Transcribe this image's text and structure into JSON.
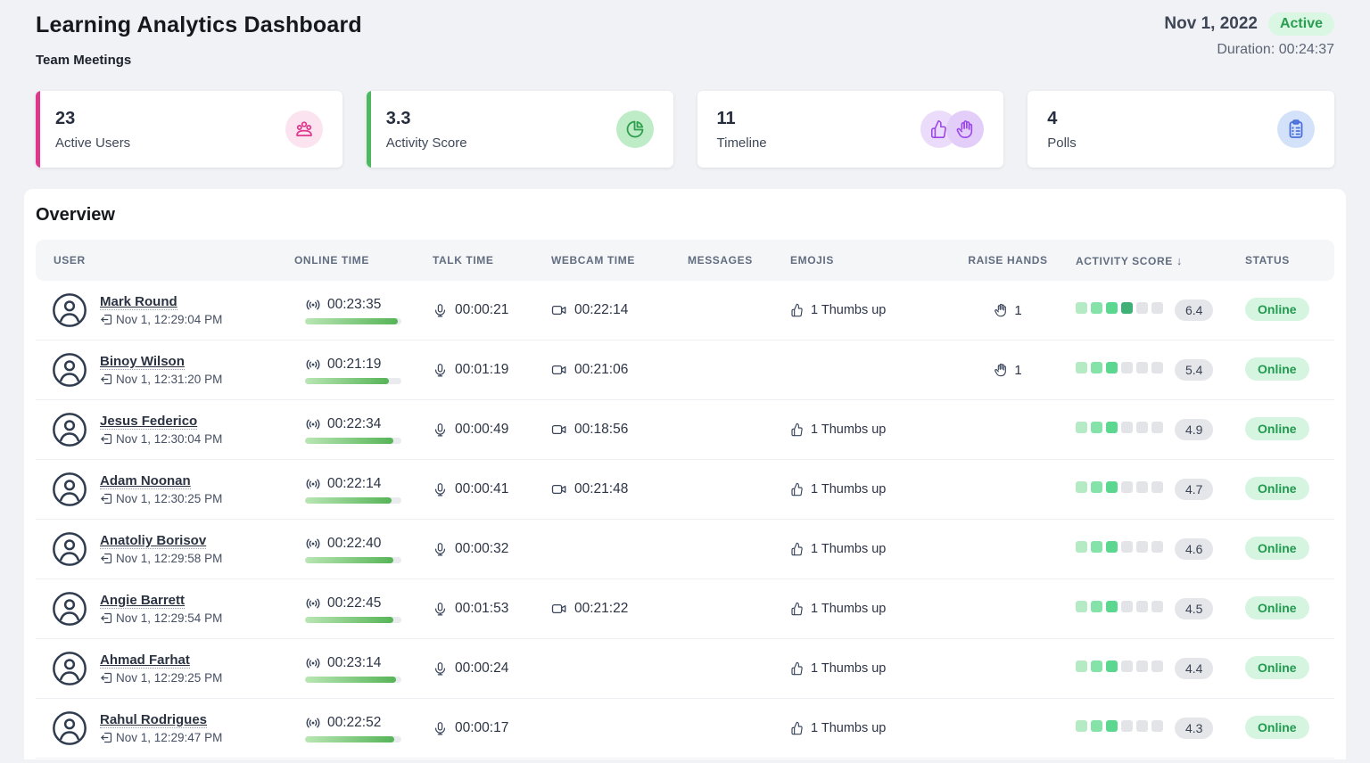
{
  "header": {
    "title": "Learning Analytics Dashboard",
    "subtitle": "Team Meetings",
    "date": "Nov 1, 2022",
    "status_badge": "Active",
    "duration_text": "Duration: 00:24:37"
  },
  "cards": [
    {
      "value": "23",
      "label": "Active Users",
      "accent": "#e0368c",
      "icon": "users-icon",
      "icon_color": "#e0368c",
      "icon_bg": "#fbe3ef"
    },
    {
      "value": "3.3",
      "label": "Activity Score",
      "accent": "#4cb860",
      "icon": "pie-chart-icon",
      "icon_color": "#35a351",
      "icon_bg": "#bdecc7"
    },
    {
      "value": "11",
      "label": "Timeline",
      "accent": "",
      "icon": "thumbs-up-icon + raised-hand-icon",
      "icon_color": "#9b45e8",
      "icon_bg": "#e7d6f9"
    },
    {
      "value": "4",
      "label": "Polls",
      "accent": "",
      "icon": "clipboard-icon",
      "icon_color": "#4a6fdc",
      "icon_bg": "#d4e2f9"
    }
  ],
  "overview": {
    "title": "Overview",
    "columns": [
      "USER",
      "ONLINE TIME",
      "TALK TIME",
      "WEBCAM TIME",
      "MESSAGES",
      "EMOJIS",
      "RAISE HANDS",
      "ACTIVITY SCORE",
      "STATUS"
    ],
    "sort_indicator": "↓",
    "score_palette": [
      "#b4ebc4",
      "#85e2a9",
      "#5cd790",
      "#3fb176",
      "#2f9a62",
      "#27824f"
    ],
    "score_empty": "#e3e4e8",
    "rows": [
      {
        "name": "Mark Round",
        "joined": "Nov 1, 12:29:04 PM",
        "online": "00:23:35",
        "online_pct": 96,
        "talk": "00:00:21",
        "webcam": "00:22:14",
        "messages": "",
        "emojis": "1 Thumbs up",
        "raise_hands": "1",
        "score": "6.4",
        "score_filled": 4,
        "status": "Online"
      },
      {
        "name": "Binoy Wilson",
        "joined": "Nov 1, 12:31:20 PM",
        "online": "00:21:19",
        "online_pct": 87,
        "talk": "00:01:19",
        "webcam": "00:21:06",
        "messages": "",
        "emojis": "",
        "raise_hands": "1",
        "score": "5.4",
        "score_filled": 3,
        "status": "Online"
      },
      {
        "name": "Jesus Federico",
        "joined": "Nov 1, 12:30:04 PM",
        "online": "00:22:34",
        "online_pct": 92,
        "talk": "00:00:49",
        "webcam": "00:18:56",
        "messages": "",
        "emojis": "1 Thumbs up",
        "raise_hands": "",
        "score": "4.9",
        "score_filled": 3,
        "status": "Online"
      },
      {
        "name": "Adam Noonan",
        "joined": "Nov 1, 12:30:25 PM",
        "online": "00:22:14",
        "online_pct": 90,
        "talk": "00:00:41",
        "webcam": "00:21:48",
        "messages": "",
        "emojis": "1 Thumbs up",
        "raise_hands": "",
        "score": "4.7",
        "score_filled": 3,
        "status": "Online"
      },
      {
        "name": "Anatoliy Borisov",
        "joined": "Nov 1, 12:29:58 PM",
        "online": "00:22:40",
        "online_pct": 92,
        "talk": "00:00:32",
        "webcam": "",
        "messages": "",
        "emojis": "1 Thumbs up",
        "raise_hands": "",
        "score": "4.6",
        "score_filled": 3,
        "status": "Online"
      },
      {
        "name": "Angie Barrett",
        "joined": "Nov 1, 12:29:54 PM",
        "online": "00:22:45",
        "online_pct": 92,
        "talk": "00:01:53",
        "webcam": "00:21:22",
        "messages": "",
        "emojis": "1 Thumbs up",
        "raise_hands": "",
        "score": "4.5",
        "score_filled": 3,
        "status": "Online"
      },
      {
        "name": "Ahmad Farhat",
        "joined": "Nov 1, 12:29:25 PM",
        "online": "00:23:14",
        "online_pct": 94,
        "talk": "00:00:24",
        "webcam": "",
        "messages": "",
        "emojis": "1 Thumbs up",
        "raise_hands": "",
        "score": "4.4",
        "score_filled": 3,
        "status": "Online"
      },
      {
        "name": "Rahul Rodrigues",
        "joined": "Nov 1, 12:29:47 PM",
        "online": "00:22:52",
        "online_pct": 93,
        "talk": "00:00:17",
        "webcam": "",
        "messages": "",
        "emojis": "1 Thumbs up",
        "raise_hands": "",
        "score": "4.3",
        "score_filled": 3,
        "status": "Online"
      }
    ]
  }
}
